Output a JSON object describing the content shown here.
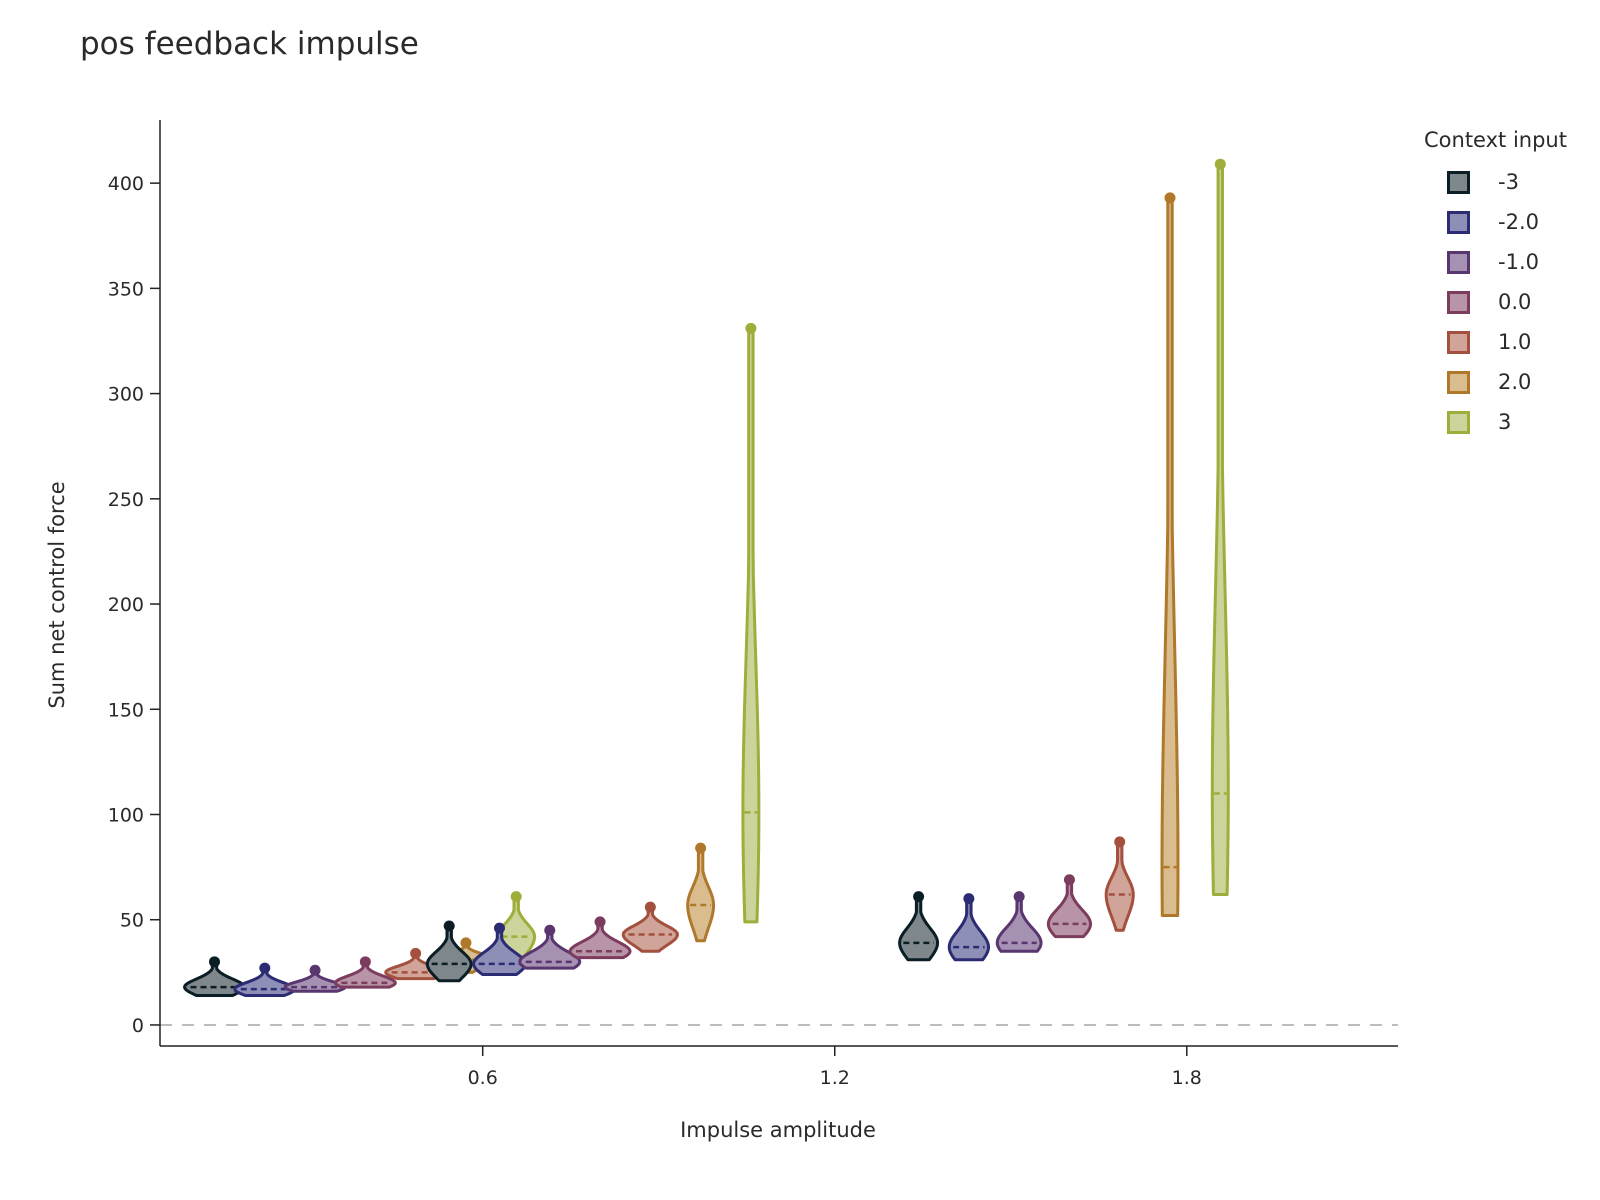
{
  "chart_data": {
    "type": "violin",
    "title": "pos feedback impulse",
    "xlabel": "Impulse amplitude",
    "ylabel": "Sum net control force",
    "x_ticks": [
      "0.6",
      "1.2",
      "1.8"
    ],
    "y_ticks": [
      "0",
      "50",
      "100",
      "150",
      "200",
      "250",
      "300",
      "350",
      "400"
    ],
    "xlim": [
      0.05,
      2.16
    ],
    "ylim": [
      -10,
      430
    ],
    "zero_line": true,
    "legend": {
      "title": "Context input",
      "placement": "right"
    },
    "amplitudes": [
      0.4,
      0.8,
      1.2,
      1.6,
      2.0
    ],
    "series": [
      {
        "name": "-3",
        "color": "#0b1e26",
        "fill": "#7e878b",
        "groups": [
          {
            "min": 14,
            "max": 30,
            "median": 18
          },
          {
            "min": 21,
            "max": 47,
            "median": 29
          },
          {
            "min": 0,
            "max": 0,
            "median": 0
          },
          {
            "min": 31,
            "max": 61,
            "median": 39
          },
          {
            "min": 0,
            "max": 0,
            "median": 0
          }
        ]
      },
      {
        "name": "-2.0",
        "color": "#2b2c73",
        "fill": "#8e8fb6",
        "groups": [
          {
            "min": 14,
            "max": 27,
            "median": 17
          },
          {
            "min": 24,
            "max": 46,
            "median": 29
          },
          {
            "min": 0,
            "max": 0,
            "median": 0
          },
          {
            "min": 31,
            "max": 60,
            "median": 37
          },
          {
            "min": 0,
            "max": 0,
            "median": 0
          }
        ]
      },
      {
        "name": "-1.0",
        "color": "#5a3670",
        "fill": "#a592b3",
        "groups": [
          {
            "min": 16,
            "max": 26,
            "median": 18
          },
          {
            "min": 27,
            "max": 45,
            "median": 30
          },
          {
            "min": 0,
            "max": 0,
            "median": 0
          },
          {
            "min": 35,
            "max": 61,
            "median": 39
          },
          {
            "min": 0,
            "max": 0,
            "median": 0
          }
        ]
      },
      {
        "name": "0.0",
        "color": "#7c3c5e",
        "fill": "#b894a8",
        "groups": [
          {
            "min": 18,
            "max": 30,
            "median": 20
          },
          {
            "min": 32,
            "max": 49,
            "median": 35
          },
          {
            "min": 0,
            "max": 0,
            "median": 0
          },
          {
            "min": 42,
            "max": 69,
            "median": 48
          },
          {
            "min": 0,
            "max": 0,
            "median": 0
          }
        ]
      },
      {
        "name": "1.0",
        "color": "#a4503f",
        "fill": "#d0a499",
        "groups": [
          {
            "min": 22,
            "max": 34,
            "median": 25
          },
          {
            "min": 35,
            "max": 56,
            "median": 43
          },
          {
            "min": 0,
            "max": 0,
            "median": 0
          },
          {
            "min": 45,
            "max": 87,
            "median": 62
          },
          {
            "min": 0,
            "max": 0,
            "median": 0
          }
        ]
      },
      {
        "name": "2.0",
        "color": "#b0782b",
        "fill": "#d9bd8f",
        "groups": [
          {
            "min": 25,
            "max": 39,
            "median": 31
          },
          {
            "min": 40,
            "max": 84,
            "median": 57
          },
          {
            "min": 0,
            "max": 0,
            "median": 0
          },
          {
            "min": 52,
            "max": 393,
            "median": 75
          },
          {
            "min": 0,
            "max": 0,
            "median": 0
          }
        ]
      },
      {
        "name": "3",
        "color": "#9fad3b",
        "fill": "#cdd49b",
        "groups": [
          {
            "min": 30,
            "max": 61,
            "median": 42
          },
          {
            "min": 49,
            "max": 331,
            "median": 101
          },
          {
            "min": 0,
            "max": 0,
            "median": 0
          },
          {
            "min": 62,
            "max": 409,
            "median": 110
          },
          {
            "min": 0,
            "max": 0,
            "median": 0
          }
        ]
      }
    ]
  }
}
